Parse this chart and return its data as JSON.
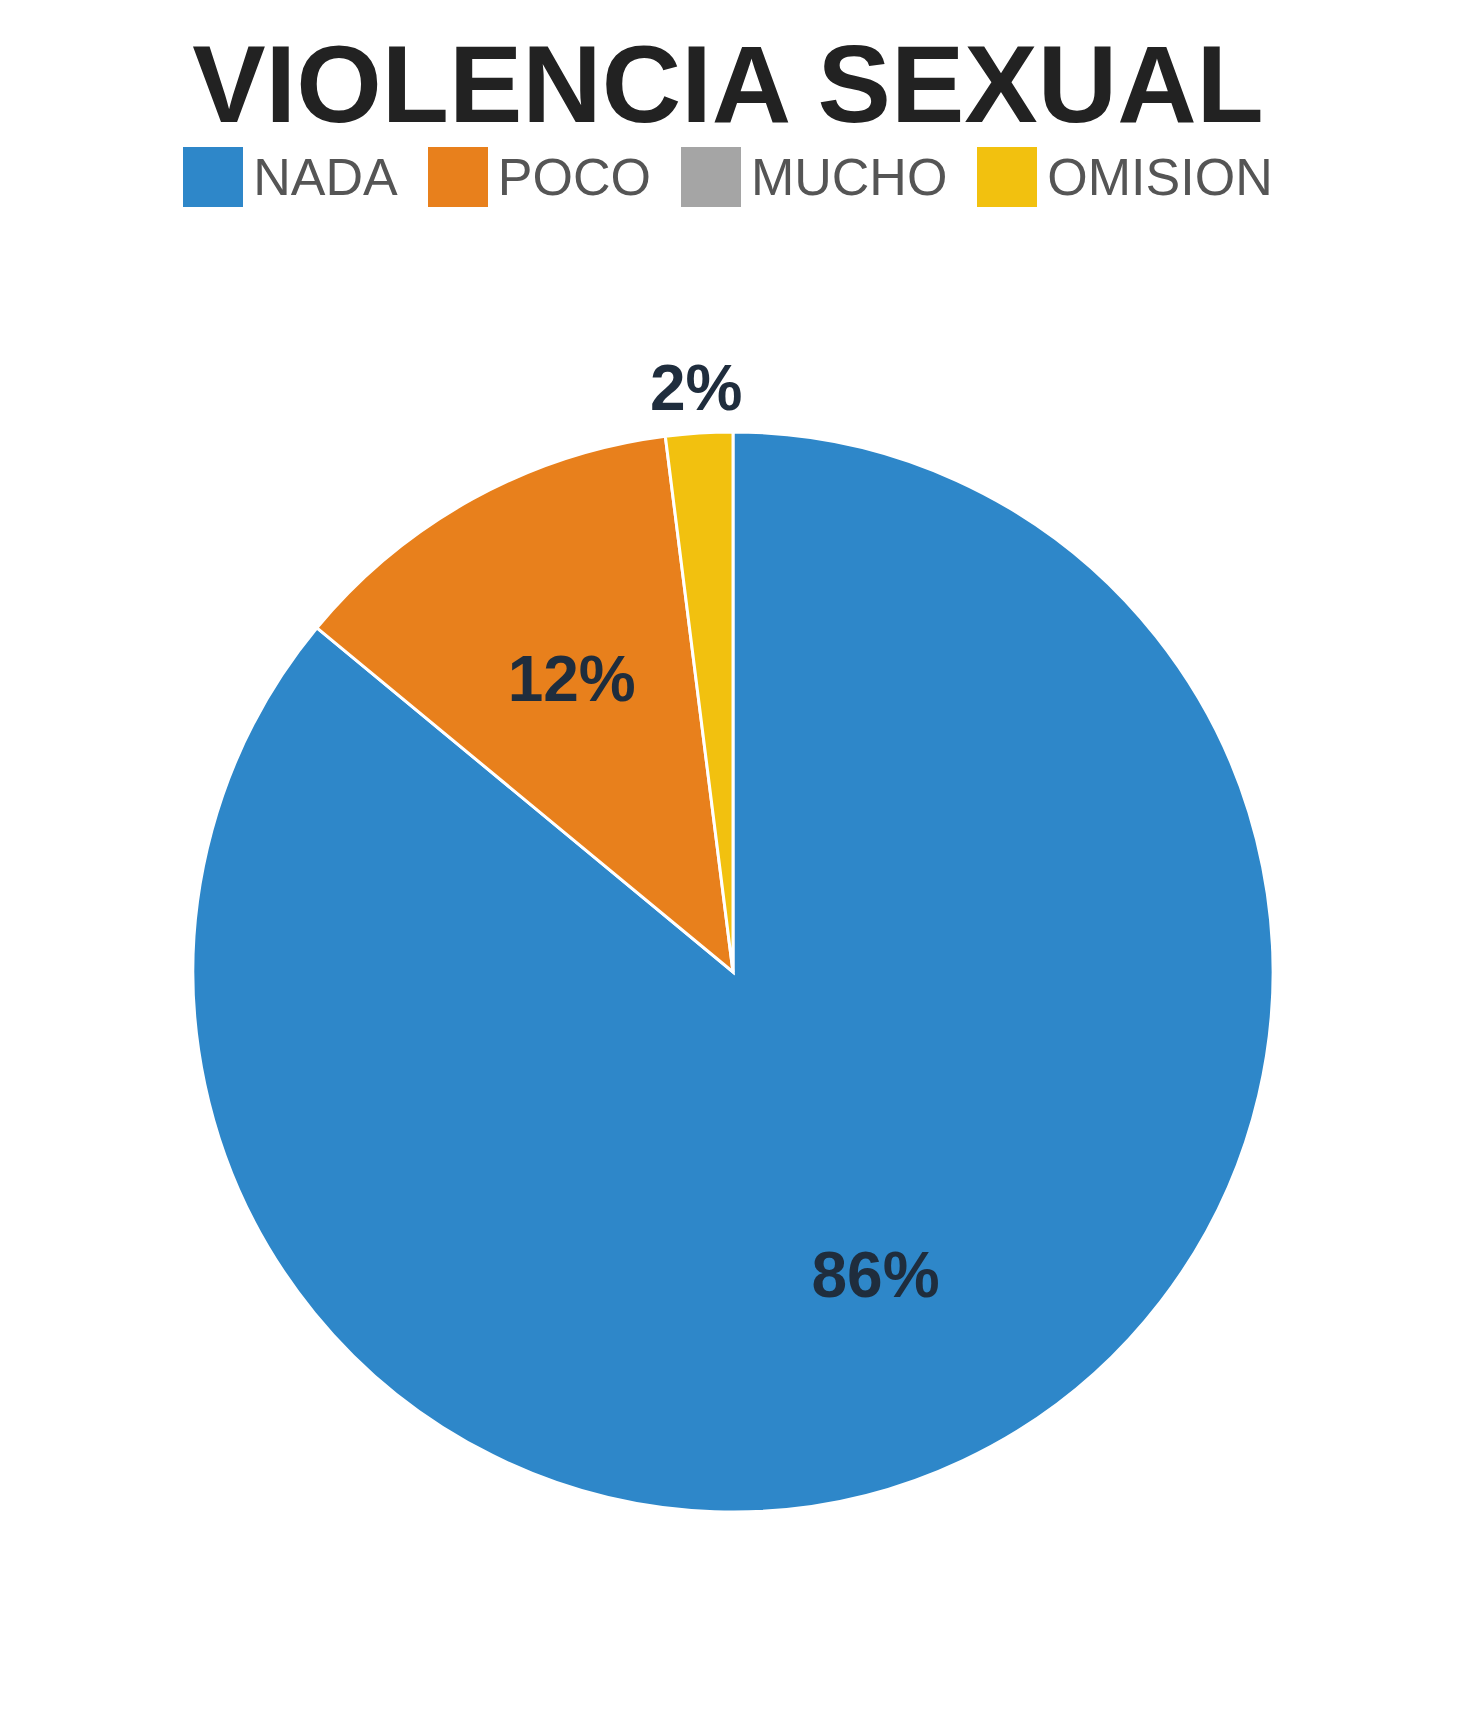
{
  "chart_data": {
    "type": "pie",
    "title": "VIOLENCIA SEXUAL",
    "categories": [
      "NADA",
      "POCO",
      "MUCHO",
      "OMISION"
    ],
    "values": [
      86,
      12,
      0,
      2
    ],
    "colors": [
      "#2e87c9",
      "#e8801c",
      "#a5a5a5",
      "#f2c10f"
    ],
    "value_labels": [
      "86%",
      "12%",
      null,
      "2%"
    ],
    "legend": "top"
  }
}
